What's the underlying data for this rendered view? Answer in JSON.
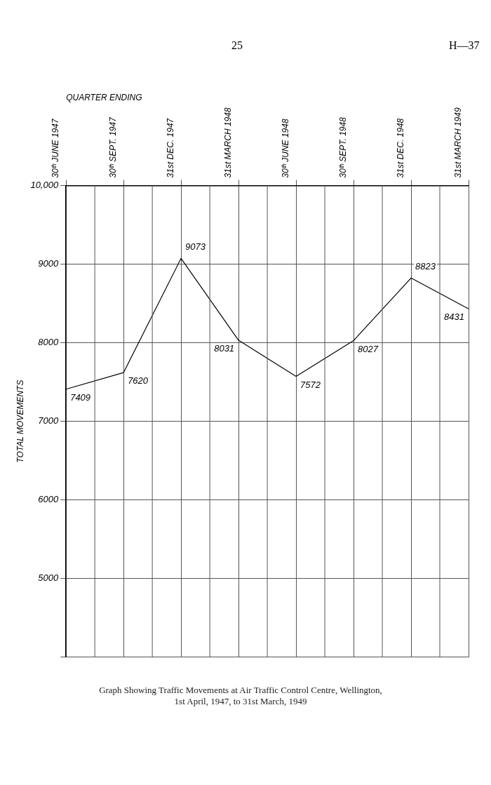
{
  "chart_data": {
    "type": "line",
    "title": [
      "Graph Showing Traffic Movements at Air Traffic Control Centre, Wellington,",
      "1st April, 1947, to 31st March, 1949"
    ],
    "xlabel": "QUARTER ENDING",
    "ylabel": "TOTAL MOVEMENTS",
    "categories": [
      "30ᵗʰ JUNE 1947",
      "30ᵗʰ SEPT. 1947",
      "31st DEC. 1947",
      "31st MARCH 1948",
      "30ᵗʰ JUNE 1948",
      "30ᵗʰ SEPT. 1948",
      "31st DEC. 1948",
      "31st MARCH 1949"
    ],
    "values": [
      7409,
      7620,
      9073,
      8031,
      7572,
      8027,
      8823,
      8431
    ],
    "color": "#000000",
    "data_labels": true,
    "grid": true,
    "legend": false,
    "marker": "none",
    "line_style": "solid",
    "ylim": [
      4000,
      10000
    ],
    "yticks": [
      {
        "value": 4000,
        "label": null
      },
      {
        "value": 5000,
        "label": "5000"
      },
      {
        "value": 6000,
        "label": "6000"
      },
      {
        "value": 7000,
        "label": "7000"
      },
      {
        "value": 8000,
        "label": "8000"
      },
      {
        "value": 9000,
        "label": "9000"
      },
      {
        "value": 10000,
        "label": "10,000"
      }
    ],
    "annotations": [
      "25",
      "H—37"
    ]
  }
}
